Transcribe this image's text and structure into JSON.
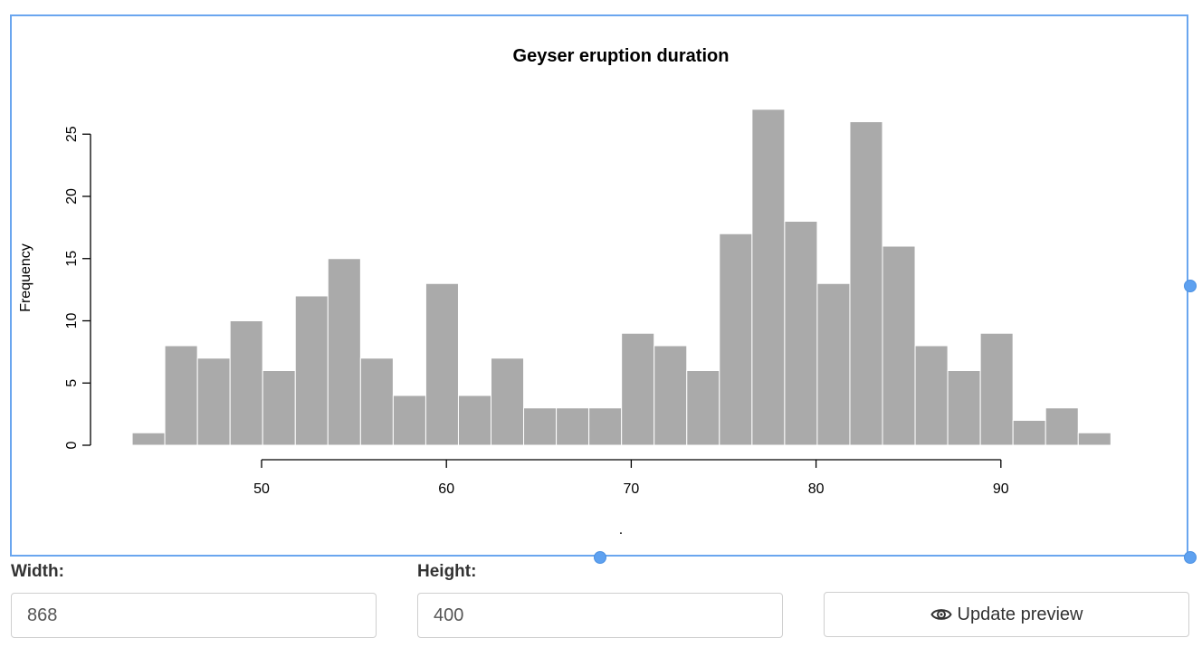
{
  "controls": {
    "width_label": "Width:",
    "width_value": "868",
    "height_label": "Height:",
    "height_value": "400",
    "update_label": "Update preview",
    "update_icon": "eye-icon"
  },
  "colors": {
    "frame_border": "#6aa6ef",
    "handle": "#5ea1f0",
    "bar_fill": "#aaaaaa"
  },
  "chart_data": {
    "type": "bar",
    "title": "Geyser eruption duration",
    "xlabel": ".",
    "ylabel": "Frequency",
    "bin_start": 43,
    "bin_width": 1.765,
    "values": [
      1,
      8,
      7,
      10,
      6,
      12,
      15,
      7,
      4,
      13,
      4,
      7,
      3,
      3,
      3,
      9,
      8,
      6,
      17,
      27,
      18,
      13,
      26,
      16,
      8,
      6,
      9,
      2,
      3,
      1
    ],
    "x_ticks": [
      50,
      60,
      70,
      80,
      90
    ],
    "y_ticks": [
      0,
      5,
      10,
      15,
      20,
      25
    ],
    "xlim": [
      40,
      100
    ],
    "ylim": [
      0,
      27
    ],
    "grid": false
  }
}
